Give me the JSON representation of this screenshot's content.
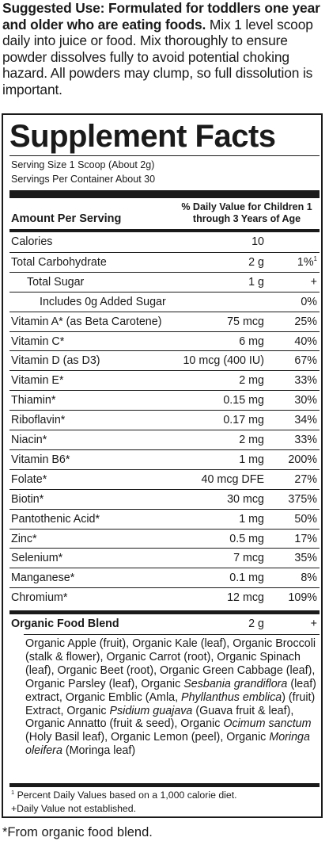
{
  "intro": {
    "bold": "Suggested Use: Formulated for toddlers one year and older who are eating foods.",
    "text": " Mix 1 level scoop daily into juice or food. Mix thoroughly to ensure powder dissolves fully to avoid potential choking hazard. All powders may clump, so full dissolution is important."
  },
  "panel": {
    "title": "Supplement Facts",
    "serving_size": "Serving Size 1 Scoop (About 2g)",
    "servings_per_container": "Servings Per Container About 30",
    "amount_header": "Amount Per Serving",
    "dv_header": "% Daily Value for Children 1 through 3 Years of Age",
    "rows": [
      {
        "name": "Calories",
        "amount": "10",
        "dv": "",
        "dv_sup": ""
      },
      {
        "name": "Total Carbohydrate",
        "amount": "2 g",
        "dv": "1%",
        "dv_sup": "1"
      },
      {
        "name": "Total Sugar",
        "amount": "1 g",
        "dv": "+",
        "dv_sup": ""
      },
      {
        "name": "Includes 0g Added Sugar",
        "amount": "",
        "dv": "0%",
        "dv_sup": ""
      },
      {
        "name": "Vitamin A* (as Beta Carotene)",
        "amount": "75 mcg",
        "dv": "25%",
        "dv_sup": ""
      },
      {
        "name": "Vitamin C*",
        "amount": "6 mg",
        "dv": "40%",
        "dv_sup": ""
      },
      {
        "name": "Vitamin D (as D3)",
        "amount": "10 mcg (400 IU)",
        "dv": "67%",
        "dv_sup": ""
      },
      {
        "name": "Vitamin E*",
        "amount": "2 mg",
        "dv": "33%",
        "dv_sup": ""
      },
      {
        "name": "Thiamin*",
        "amount": "0.15 mg",
        "dv": "30%",
        "dv_sup": ""
      },
      {
        "name": "Riboflavin*",
        "amount": "0.17 mg",
        "dv": "34%",
        "dv_sup": ""
      },
      {
        "name": "Niacin*",
        "amount": "2 mg",
        "dv": "33%",
        "dv_sup": ""
      },
      {
        "name": "Vitamin B6*",
        "amount": "1 mg",
        "dv": "200%",
        "dv_sup": ""
      },
      {
        "name": "Folate*",
        "amount": "40 mcg DFE",
        "dv": "27%",
        "dv_sup": ""
      },
      {
        "name": "Biotin*",
        "amount": "30 mcg",
        "dv": "375%",
        "dv_sup": ""
      },
      {
        "name": "Pantothenic Acid*",
        "amount": "1 mg",
        "dv": "50%",
        "dv_sup": ""
      },
      {
        "name": "Zinc*",
        "amount": "0.5 mg",
        "dv": "17%",
        "dv_sup": ""
      },
      {
        "name": "Selenium*",
        "amount": "7 mcg",
        "dv": "35%",
        "dv_sup": ""
      },
      {
        "name": "Manganese*",
        "amount": "0.1 mg",
        "dv": "8%",
        "dv_sup": ""
      },
      {
        "name": "Chromium*",
        "amount": "12 mcg",
        "dv": "109%",
        "dv_sup": ""
      }
    ],
    "blend": {
      "title": "Organic Food Blend",
      "amount": "2 g",
      "dv": "+",
      "ingredients": [
        {
          "text": "Organic Apple (fruit), Organic Kale (leaf), Organic Broccoli (stalk & flower), Organic Carrot (root), Organic Spinach (leaf), Organic Beet (root), Organic Green Cabbage (leaf), Organic Parsley (leaf), Organic ",
          "italic": false
        },
        {
          "text": "Sesbania grandiflora",
          "italic": true
        },
        {
          "text": " (leaf) extract, Organic Emblic (Amla, ",
          "italic": false
        },
        {
          "text": "Phyllanthus emblica",
          "italic": true
        },
        {
          "text": ") (fruit) Extract, Organic ",
          "italic": false
        },
        {
          "text": "Psidium guajava",
          "italic": true
        },
        {
          "text": " (Guava fruit & leaf), Organic Annatto (fruit & seed), Organic ",
          "italic": false
        },
        {
          "text": "Ocimum sanctum",
          "italic": true
        },
        {
          "text": " (Holy Basil leaf), Organic Lemon (peel), Organic ",
          "italic": false
        },
        {
          "text": "Moringa oleifera",
          "italic": true
        },
        {
          "text": " (Moringa leaf)",
          "italic": false
        }
      ]
    },
    "footnote_1_sup": "1",
    "footnote_1": " Percent Daily Values based on a 1,000 calorie diet.",
    "footnote_2": "+Daily Value not established."
  },
  "bottom_note": "*From organic food blend."
}
